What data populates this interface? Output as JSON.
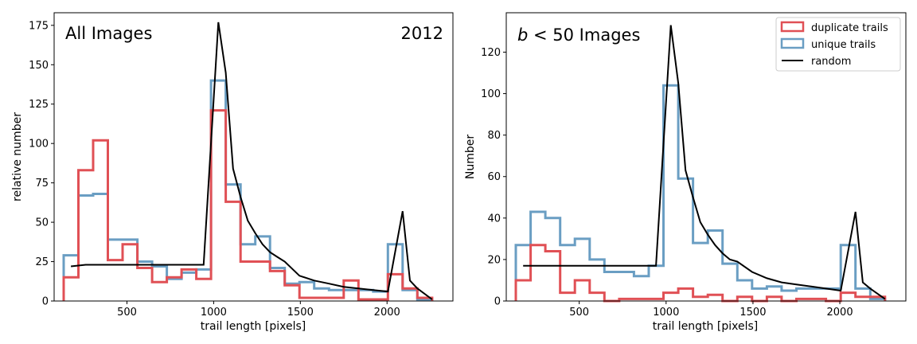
{
  "colors": {
    "duplicate": "#e05055",
    "unique": "#6a9ec3",
    "random": "#000000"
  },
  "chart_data": [
    {
      "type": "step-histogram",
      "title": "",
      "corner_text_left": "All Images",
      "corner_text_right": "2012",
      "xlabel": "trail length [pixels]",
      "ylabel": "relative number",
      "xlim": [
        80,
        2380
      ],
      "ylim": [
        0,
        183
      ],
      "xticks": [
        500,
        1000,
        1500,
        2000
      ],
      "yticks": [
        0,
        25,
        50,
        75,
        100,
        125,
        150,
        175
      ],
      "grid": false,
      "bin_edges": [
        135,
        220,
        305,
        390,
        475,
        560,
        645,
        730,
        815,
        900,
        985,
        1070,
        1155,
        1240,
        1325,
        1410,
        1495,
        1580,
        1665,
        1750,
        1835,
        1920,
        2005,
        2090,
        2175,
        2260
      ],
      "series": [
        {
          "name": "duplicate trails",
          "kind": "step",
          "color_key": "duplicate",
          "values": [
            15,
            83,
            102,
            26,
            36,
            21,
            12,
            15,
            20,
            14,
            121,
            63,
            25,
            25,
            19,
            10,
            2,
            2,
            2,
            13,
            1,
            1,
            17,
            8,
            2
          ]
        },
        {
          "name": "unique trails",
          "kind": "step",
          "color_key": "unique",
          "values": [
            29,
            67,
            68,
            39,
            39,
            25,
            22,
            14,
            18,
            20,
            140,
            74,
            36,
            41,
            21,
            11,
            12,
            8,
            7,
            7,
            7,
            6,
            36,
            7,
            1
          ]
        },
        {
          "name": "random",
          "kind": "line",
          "color_key": "random",
          "x": [
            177,
            262,
            347,
            432,
            517,
            602,
            687,
            772,
            857,
            942,
            1027,
            1070,
            1112,
            1155,
            1197,
            1240,
            1282,
            1325,
            1367,
            1410,
            1495,
            1580,
            1665,
            1750,
            1835,
            1920,
            2005,
            2090,
            2132,
            2175,
            2260
          ],
          "y": [
            22,
            23,
            23,
            23,
            23,
            23,
            23,
            23,
            23,
            23,
            177,
            145,
            84,
            66,
            51,
            43,
            36,
            31,
            28,
            25,
            16,
            13,
            11,
            9,
            8,
            7,
            6,
            57,
            13,
            8,
            1
          ]
        }
      ]
    },
    {
      "type": "step-histogram",
      "title": "",
      "corner_text_left_math": "b",
      "corner_text_left_rest": " < 50 Images",
      "xlabel": "trail length [pixels]",
      "ylabel": "Number",
      "xlim": [
        80,
        2380
      ],
      "ylim": [
        0,
        139
      ],
      "xticks": [
        500,
        1000,
        1500,
        2000
      ],
      "yticks": [
        0,
        20,
        40,
        60,
        80,
        100,
        120
      ],
      "grid": false,
      "legend": {
        "position": "top-right",
        "entries": [
          "duplicate trails",
          "unique trails",
          "random"
        ]
      },
      "bin_edges": [
        135,
        220,
        305,
        390,
        475,
        560,
        645,
        730,
        815,
        900,
        985,
        1070,
        1155,
        1240,
        1325,
        1410,
        1495,
        1580,
        1665,
        1750,
        1835,
        1920,
        2005,
        2090,
        2175,
        2260
      ],
      "series": [
        {
          "name": "duplicate trails",
          "kind": "step",
          "color_key": "duplicate",
          "values": [
            10,
            27,
            24,
            4,
            10,
            4,
            0,
            1,
            1,
            1,
            4,
            6,
            2,
            3,
            0,
            2,
            0,
            2,
            0,
            1,
            1,
            0,
            4,
            2,
            2
          ]
        },
        {
          "name": "unique trails",
          "kind": "step",
          "color_key": "unique",
          "values": [
            27,
            43,
            40,
            27,
            30,
            20,
            14,
            14,
            12,
            17,
            104,
            59,
            28,
            34,
            18,
            10,
            6,
            7,
            5,
            6,
            6,
            6,
            27,
            6,
            1
          ]
        },
        {
          "name": "random",
          "kind": "line",
          "color_key": "random",
          "x": [
            177,
            262,
            347,
            432,
            517,
            602,
            687,
            772,
            857,
            942,
            1027,
            1070,
            1112,
            1155,
            1197,
            1240,
            1282,
            1325,
            1367,
            1410,
            1495,
            1580,
            1665,
            1750,
            1835,
            1920,
            2005,
            2090,
            2132,
            2175,
            2260
          ],
          "y": [
            17,
            17,
            17,
            17,
            17,
            17,
            17,
            17,
            17,
            17,
            133,
            105,
            63,
            50,
            38,
            32,
            27,
            23,
            20,
            19,
            14,
            11,
            9,
            8,
            7,
            6,
            5,
            43,
            9,
            6,
            1
          ]
        }
      ]
    }
  ]
}
